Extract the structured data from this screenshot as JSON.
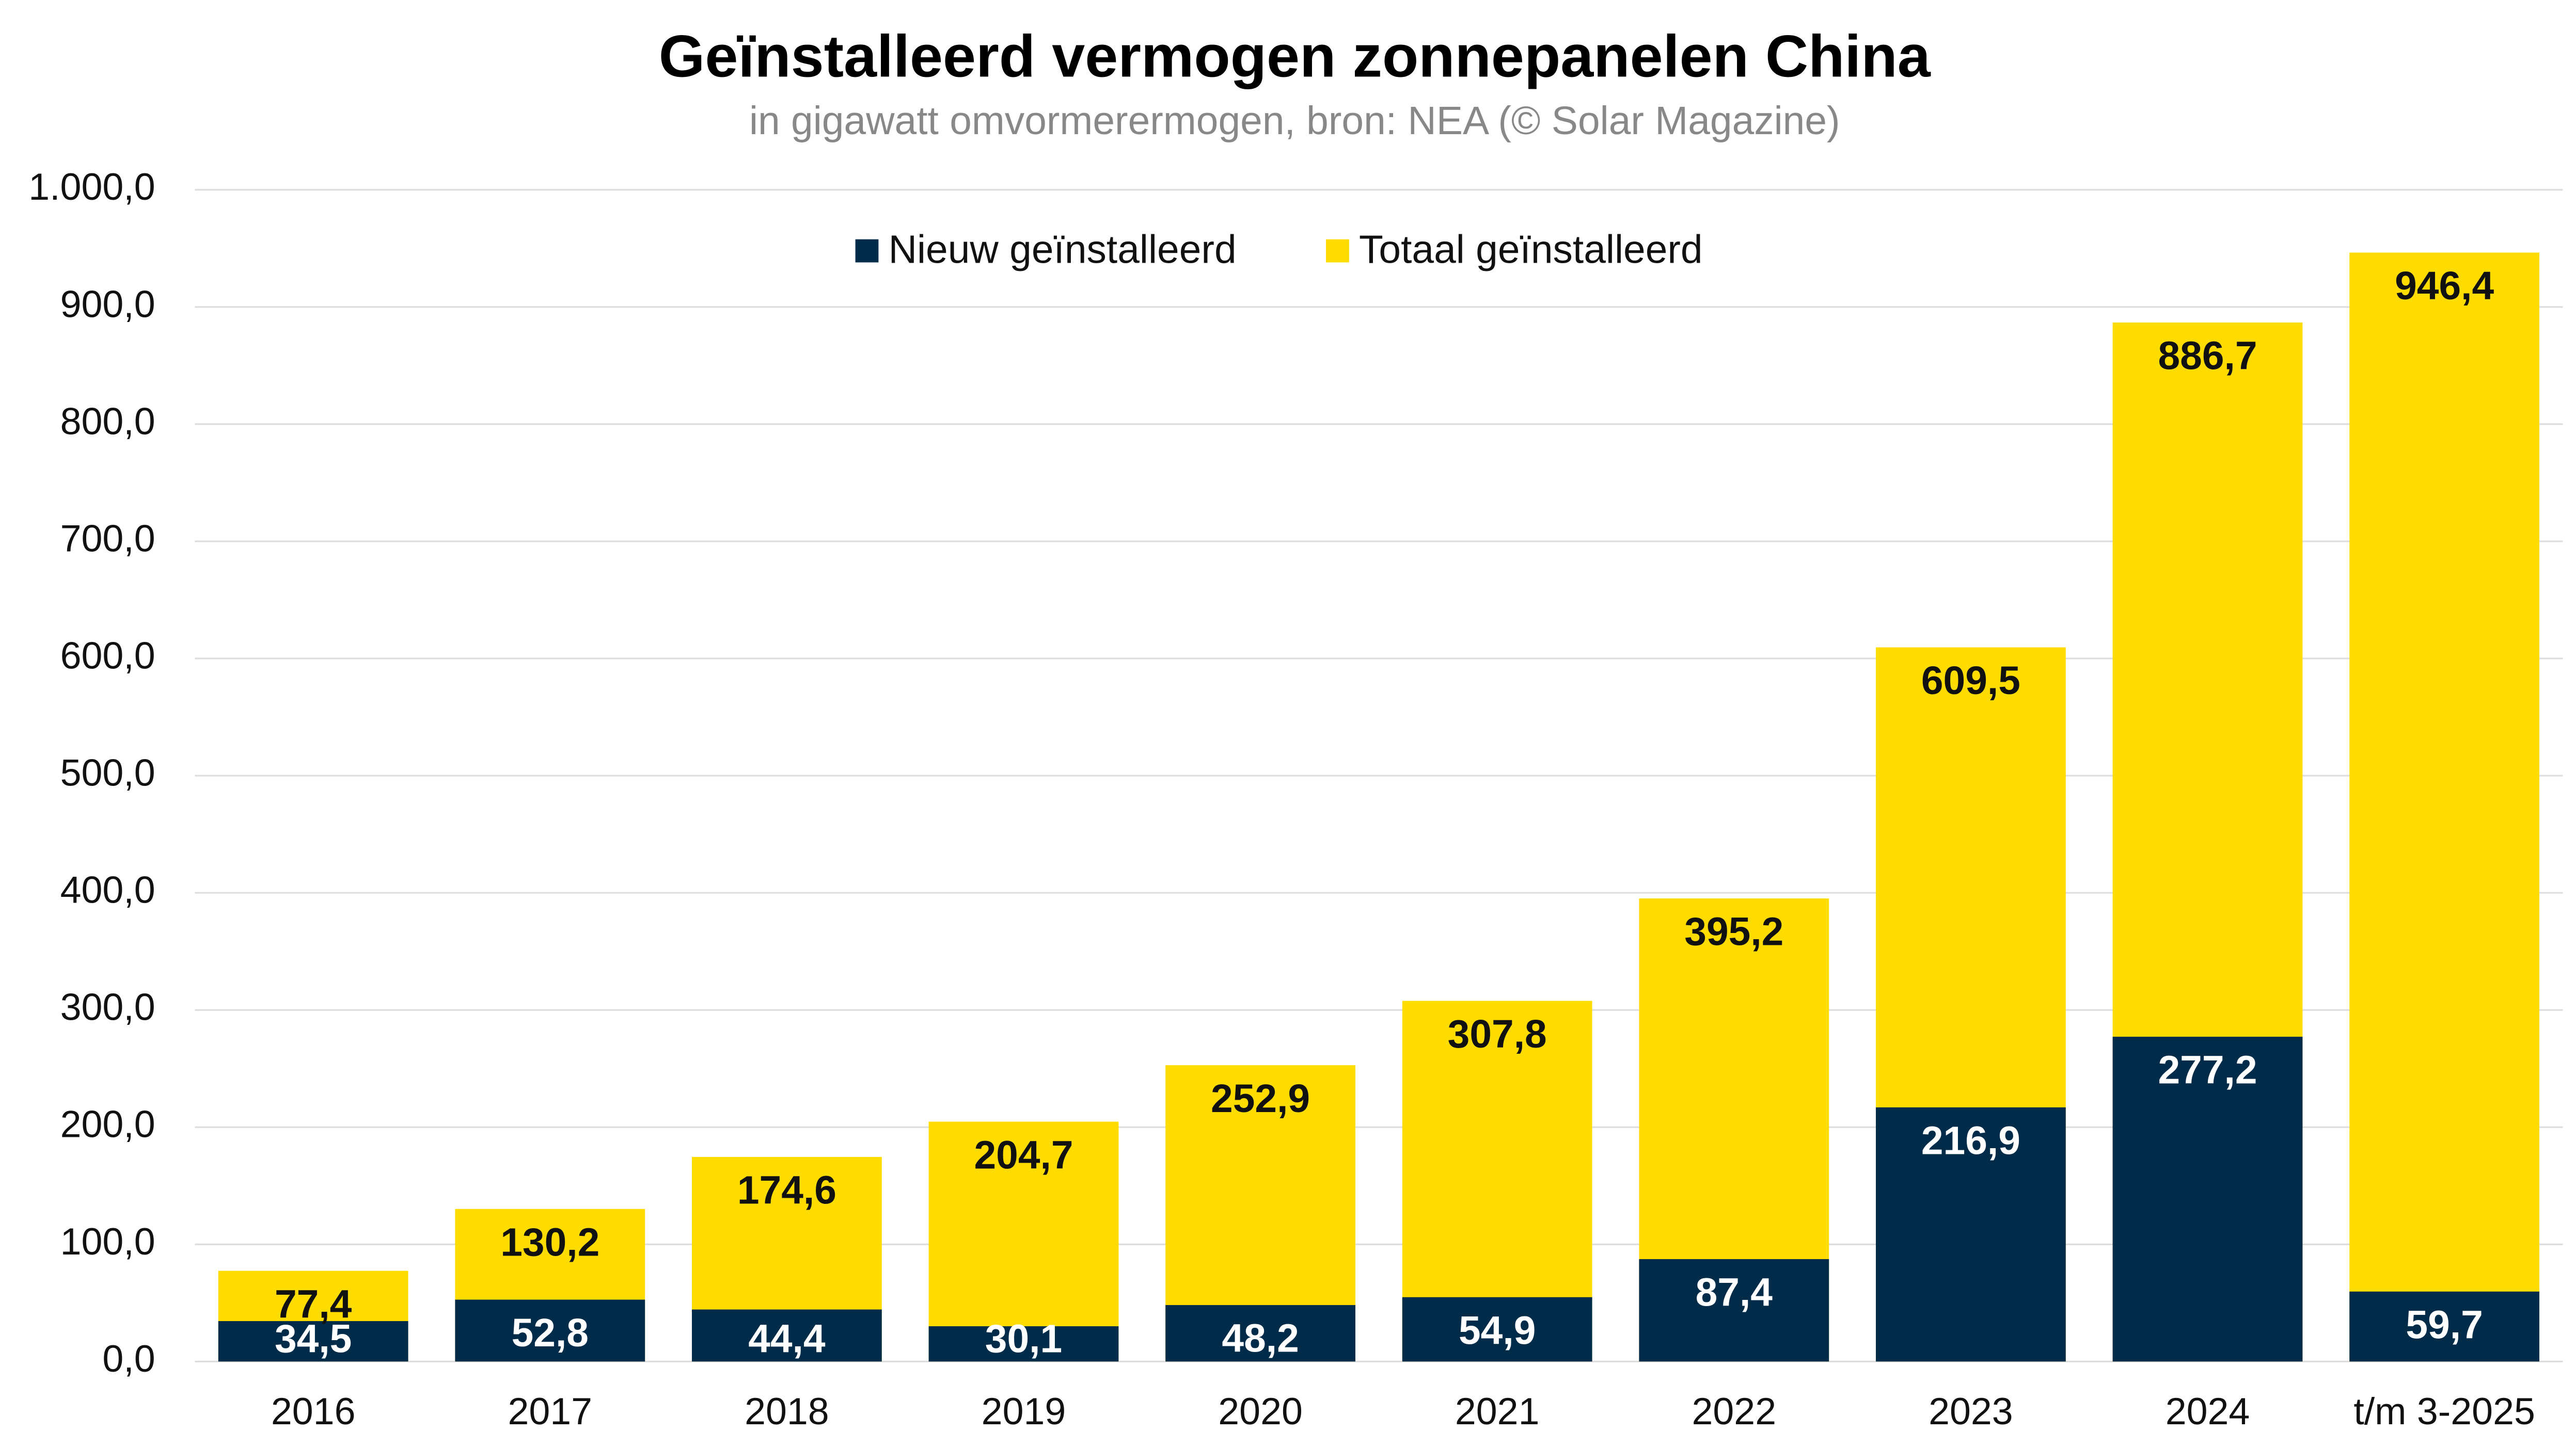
{
  "chart_data": {
    "type": "bar",
    "overlap": true,
    "title": "Geïnstalleerd vermogen zonnepanelen China",
    "subtitle": "in gigawatt omvormerermogen, bron: NEA (© Solar Magazine)",
    "categories": [
      "2016",
      "2017",
      "2018",
      "2019",
      "2020",
      "2021",
      "2022",
      "2023",
      "2024",
      "t/m 3-2025"
    ],
    "series": [
      {
        "name": "Nieuw geïnstalleerd",
        "color": "#002b49",
        "values": [
          34.5,
          52.8,
          44.4,
          30.1,
          48.2,
          54.9,
          87.4,
          216.9,
          277.2,
          59.7
        ],
        "value_labels": [
          "34,5",
          "52,8",
          "44,4",
          "30,1",
          "48,2",
          "54,9",
          "87,4",
          "216,9",
          "277,2",
          "59,7"
        ]
      },
      {
        "name": "Totaal geïnstalleerd",
        "color": "#ffdc00",
        "values": [
          77.4,
          130.2,
          174.6,
          204.7,
          252.9,
          307.8,
          395.2,
          609.5,
          886.7,
          946.4
        ],
        "value_labels": [
          "77,4",
          "130,2",
          "174,6",
          "204,7",
          "252,9",
          "307,8",
          "395,2",
          "609,5",
          "886,7",
          "946,4"
        ]
      }
    ],
    "ylim": [
      0,
      1000
    ],
    "yticks": [
      {
        "value": 0,
        "label": "0,0"
      },
      {
        "value": 100,
        "label": "100,0"
      },
      {
        "value": 200,
        "label": "200,0"
      },
      {
        "value": 300,
        "label": "300,0"
      },
      {
        "value": 400,
        "label": "400,0"
      },
      {
        "value": 500,
        "label": "500,0"
      },
      {
        "value": 600,
        "label": "600,0"
      },
      {
        "value": 700,
        "label": "700,0"
      },
      {
        "value": 800,
        "label": "800,0"
      },
      {
        "value": 900,
        "label": "900,0"
      },
      {
        "value": 1000,
        "label": "1.000,0"
      }
    ],
    "grid": true,
    "legend": "top"
  }
}
